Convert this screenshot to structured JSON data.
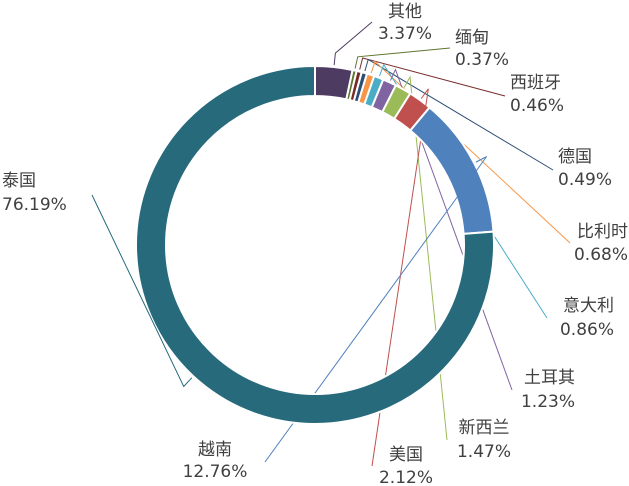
{
  "chart_data": {
    "type": "donut",
    "categories": [
      "其他",
      "缅甸",
      "西班牙",
      "德国",
      "比利时",
      "意大利",
      "土耳其",
      "新西兰",
      "美国",
      "越南",
      "泰国"
    ],
    "values": [
      3.37,
      0.37,
      0.46,
      0.49,
      0.68,
      0.86,
      1.23,
      1.47,
      2.12,
      12.76,
      76.19
    ],
    "value_labels": [
      "3.37%",
      "0.37%",
      "0.46%",
      "0.49%",
      "0.68%",
      "0.86%",
      "1.23%",
      "1.47%",
      "2.12%",
      "12.76%",
      "76.19%"
    ],
    "colors": [
      "#4e3b62",
      "#5f7530",
      "#772c2a",
      "#2c4d75",
      "#f79646",
      "#4bacc6",
      "#8064a2",
      "#9bbb59",
      "#c0504d",
      "#4f81bd",
      "#276a7c"
    ]
  }
}
